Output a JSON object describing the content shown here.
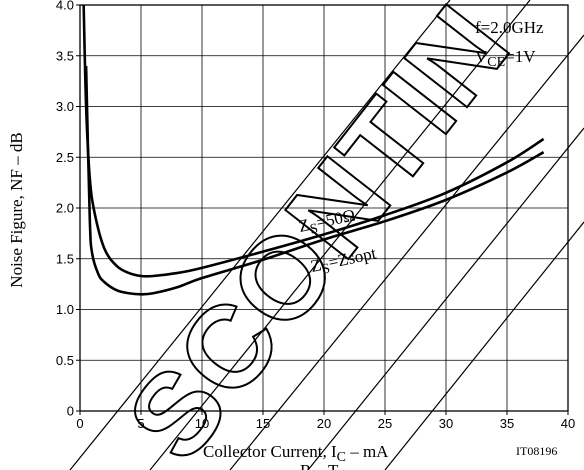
{
  "chart_data": {
    "type": "line",
    "xlabel": "Collector Current, IC  –  mA",
    "xlabel_main": "Collector Current, I",
    "xlabel_sub": "C",
    "xlabel_tail": "  –  mA",
    "ylabel": "Noise Figure, NF  –  dB",
    "xlim": [
      0,
      40
    ],
    "ylim": [
      0,
      4.0
    ],
    "x_ticks": [
      "0",
      "5",
      "10",
      "15",
      "20",
      "25",
      "30",
      "35",
      "40"
    ],
    "y_ticks": [
      "0",
      "0.5",
      "1.0",
      "1.5",
      "2.0",
      "2.5",
      "3.0",
      "3.5",
      "4.0"
    ],
    "grid": true,
    "conditions": {
      "freq": "f=2.0GHz",
      "vce_main": "V",
      "vce_sub": "CE",
      "vce_tail": "=1V"
    },
    "series": [
      {
        "name": "ZS=50Ω",
        "label_main": "Z",
        "label_sub": "S",
        "label_tail": "=50Ω",
        "x": [
          0.3,
          0.5,
          0.8,
          1.2,
          2.0,
          3.0,
          4.0,
          5.0,
          6.0,
          8.0,
          10.0,
          15.0,
          20.0,
          25.0,
          30.0,
          35.0,
          38.0
        ],
        "y": [
          4.0,
          3.0,
          2.3,
          1.95,
          1.6,
          1.43,
          1.36,
          1.33,
          1.33,
          1.36,
          1.41,
          1.57,
          1.74,
          1.93,
          2.15,
          2.45,
          2.68
        ]
      },
      {
        "name": "ZS=Zsopt",
        "label_main": "Z",
        "label_sub": "S",
        "label_tail": "=Zsopt",
        "x": [
          0.5,
          0.8,
          1.0,
          1.5,
          2.0,
          3.0,
          4.0,
          5.0,
          6.0,
          8.0,
          10.0,
          15.0,
          20.0,
          25.0,
          30.0,
          35.0,
          38.0
        ],
        "y": [
          3.4,
          1.9,
          1.55,
          1.35,
          1.27,
          1.19,
          1.16,
          1.15,
          1.16,
          1.22,
          1.31,
          1.49,
          1.69,
          1.87,
          2.08,
          2.35,
          2.55
        ]
      }
    ]
  },
  "figure_code": "IT08196",
  "watermark": "DISCONTINUED",
  "watermark_visible": "SCONTIN",
  "bottom_partial_text": "R... T..."
}
